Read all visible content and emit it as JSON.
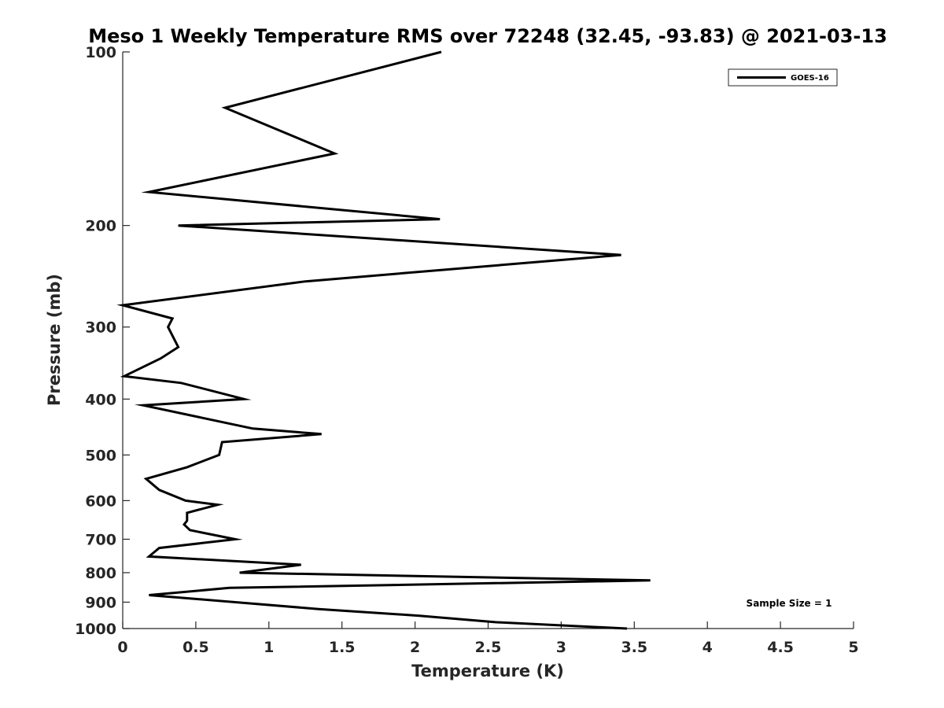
{
  "chart_data": {
    "type": "line",
    "title": "Meso 1 Weekly Temperature RMS over 72248 (32.45, -93.83) @ 2021-03-13",
    "xlabel": "Temperature (K)",
    "ylabel": "Pressure (mb)",
    "xlim": [
      0,
      5
    ],
    "ylim": [
      100,
      1000
    ],
    "y_scale": "log",
    "y_reversed": true,
    "grid": false,
    "legend_position": "top-right",
    "x_ticks": [
      "0",
      "0.5",
      "1",
      "1.5",
      "2",
      "2.5",
      "3",
      "3.5",
      "4",
      "4.5",
      "5"
    ],
    "y_ticks": [
      "100",
      "200",
      "300",
      "400",
      "500",
      "600",
      "700",
      "800",
      "900",
      "1000"
    ],
    "series": [
      {
        "name": "GOES-16",
        "color": "#000000",
        "points": [
          [
            2.18,
            100
          ],
          [
            0.7,
            125
          ],
          [
            1.45,
            150
          ],
          [
            0.18,
            175
          ],
          [
            2.17,
            195
          ],
          [
            0.38,
            200
          ],
          [
            3.41,
            225
          ],
          [
            1.25,
            250
          ],
          [
            0.0,
            275
          ],
          [
            0.34,
            290
          ],
          [
            0.31,
            300
          ],
          [
            0.38,
            325
          ],
          [
            0.26,
            340
          ],
          [
            0.01,
            365
          ],
          [
            0.4,
            375
          ],
          [
            0.83,
            400
          ],
          [
            0.14,
            410
          ],
          [
            0.89,
            450
          ],
          [
            1.36,
            460
          ],
          [
            0.68,
            475
          ],
          [
            0.66,
            500
          ],
          [
            0.44,
            525
          ],
          [
            0.16,
            550
          ],
          [
            0.25,
            575
          ],
          [
            0.43,
            600
          ],
          [
            0.65,
            610
          ],
          [
            0.44,
            630
          ],
          [
            0.44,
            650
          ],
          [
            0.42,
            660
          ],
          [
            0.46,
            675
          ],
          [
            0.77,
            700
          ],
          [
            0.25,
            725
          ],
          [
            0.18,
            750
          ],
          [
            1.22,
            775
          ],
          [
            0.8,
            800
          ],
          [
            3.61,
            825
          ],
          [
            0.73,
            850
          ],
          [
            0.18,
            875
          ],
          [
            1.34,
            925
          ],
          [
            2.03,
            950
          ],
          [
            2.55,
            975
          ],
          [
            3.45,
            1000
          ]
        ]
      }
    ],
    "annotation": "Sample Size = 1"
  }
}
